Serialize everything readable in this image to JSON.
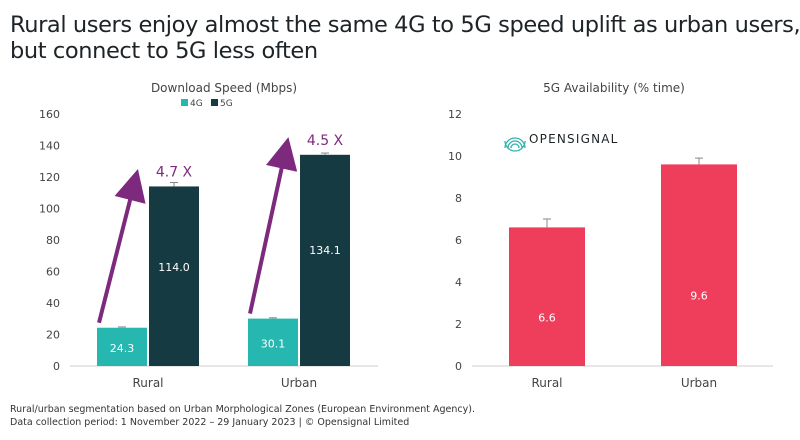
{
  "headline": {
    "line1": "Rural users enjoy almost the same 4G to 5G speed uplift as urban users,",
    "line2": "but connect to 5G less often"
  },
  "logo_text": "OPENSIGNAL",
  "footnote": {
    "line1": "Rural/urban segmentation based on Urban Morphological Zones (European Environment Agency).",
    "line2": "Data collection period: 1 November 2022 – 29 January 2023 | © Opensignal Limited"
  },
  "colors": {
    "4g": "#26b8b0",
    "5g": "#163a41",
    "availability": "#ef3e5c",
    "arrow": "#7d2a7e",
    "axis_text": "#444444",
    "grid": "#dddddd"
  },
  "chart_data": [
    {
      "type": "bar",
      "title": "Download Speed (Mbps)",
      "categories": [
        "Rural",
        "Urban"
      ],
      "series": [
        {
          "name": "4G",
          "values": [
            24.3,
            30.1
          ],
          "error_upper": [
            24.8,
            30.6
          ]
        },
        {
          "name": "5G",
          "values": [
            114.0,
            134.1
          ],
          "error_upper": [
            116.5,
            135.2
          ]
        }
      ],
      "value_labels": [
        [
          "24.3",
          "30.1"
        ],
        [
          "114.0",
          "134.1"
        ]
      ],
      "ylim": [
        0,
        160
      ],
      "yticks": [
        0,
        20,
        40,
        60,
        80,
        100,
        120,
        140,
        160
      ],
      "ytick_labels": [
        "0",
        "20",
        "40",
        "60",
        "80",
        "100",
        "120",
        "140",
        "160"
      ],
      "legend": [
        "4G",
        "5G"
      ],
      "legend_position": "top",
      "annotations": [
        "4.7 X",
        "4.5 X"
      ],
      "grid": false
    },
    {
      "type": "bar",
      "title": "5G Availability (% time)",
      "categories": [
        "Rural",
        "Urban"
      ],
      "series": [
        {
          "values": [
            6.6,
            9.6
          ],
          "error_upper": [
            7.0,
            9.9
          ]
        }
      ],
      "value_labels": [
        "6.6",
        "9.6"
      ],
      "ylim": [
        0,
        12
      ],
      "yticks": [
        0,
        2,
        4,
        6,
        8,
        10,
        12
      ],
      "ytick_labels": [
        "0",
        "2",
        "4",
        "6",
        "8",
        "10",
        "12"
      ],
      "grid": false
    }
  ]
}
